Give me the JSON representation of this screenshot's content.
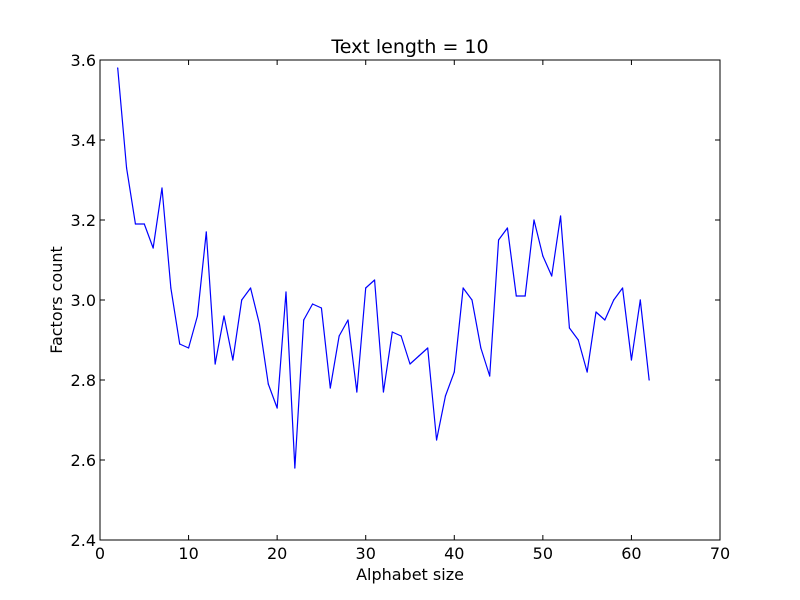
{
  "chart_data": {
    "type": "line",
    "title": "Text length = 10",
    "xlabel": "Alphabet size",
    "ylabel": "Factors count",
    "xlim": [
      0,
      70
    ],
    "ylim": [
      2.4,
      3.6
    ],
    "xticks": [
      "0",
      "10",
      "20",
      "30",
      "40",
      "50",
      "60",
      "70"
    ],
    "yticks": [
      "2.4",
      "2.6",
      "2.8",
      "3.0",
      "3.2",
      "3.4",
      "3.6"
    ],
    "grid": false,
    "legend": "none",
    "series": [
      {
        "color": "#0000ff",
        "x": [
          2,
          3,
          4,
          5,
          6,
          7,
          8,
          9,
          10,
          11,
          12,
          13,
          14,
          15,
          16,
          17,
          18,
          19,
          20,
          21,
          22,
          23,
          24,
          25,
          26,
          27,
          28,
          29,
          30,
          31,
          32,
          33,
          34,
          35,
          36,
          37,
          38,
          39,
          40,
          41,
          42,
          43,
          44,
          45,
          46,
          47,
          48,
          49,
          50,
          51,
          52,
          53,
          54,
          55,
          56,
          57,
          58,
          59,
          60,
          61,
          62
        ],
        "y": [
          3.58,
          3.33,
          3.19,
          3.19,
          3.13,
          3.28,
          3.03,
          2.89,
          2.88,
          2.96,
          3.17,
          2.84,
          2.96,
          2.85,
          3.0,
          3.03,
          2.94,
          2.79,
          2.73,
          3.02,
          2.58,
          2.95,
          2.99,
          2.98,
          2.78,
          2.91,
          2.95,
          2.77,
          3.03,
          3.05,
          2.77,
          2.92,
          2.91,
          2.84,
          2.86,
          2.88,
          2.65,
          2.76,
          2.82,
          3.03,
          3.0,
          2.88,
          2.81,
          3.15,
          3.18,
          3.01,
          3.01,
          3.2,
          3.11,
          3.06,
          3.21,
          2.93,
          2.9,
          2.82,
          2.97,
          2.95,
          3.0,
          3.03,
          2.85,
          3.0,
          2.8
        ]
      }
    ]
  }
}
